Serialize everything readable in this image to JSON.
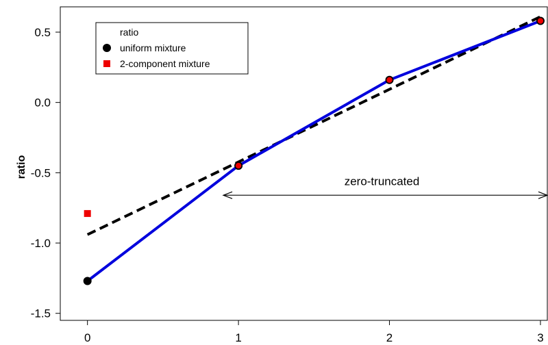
{
  "chart_data": {
    "type": "line",
    "xlabel": "",
    "ylabel": "ratio",
    "xlim": [
      -0.18,
      3.05
    ],
    "ylim": [
      -1.55,
      0.68
    ],
    "xticks": [
      0,
      1,
      2,
      3
    ],
    "yticks": [
      -1.5,
      -1.0,
      -0.5,
      0.0,
      0.5
    ],
    "xtick_labels": [
      "0",
      "1",
      "2",
      "3"
    ],
    "ytick_labels": [
      "-1.5",
      "-1.0",
      "-0.5",
      "0.0",
      "0.5"
    ],
    "grid": false,
    "legend": {
      "placement": "top-left",
      "title": "ratio",
      "entries": [
        "uniform mixture",
        "2-component mixture"
      ]
    },
    "series": [
      {
        "name": "uniform mixture",
        "kind": "points+line",
        "marker": "circle",
        "color": "#000000",
        "line_color": "#0000dd",
        "x": [
          0,
          1,
          2,
          3
        ],
        "y": [
          -1.27,
          -0.45,
          0.16,
          0.58
        ]
      },
      {
        "name": "2-component mixture",
        "kind": "points",
        "marker": "square",
        "color": "#ee0000",
        "x": [
          0,
          1,
          2,
          3
        ],
        "y": [
          -0.79,
          -0.45,
          0.16,
          0.58
        ]
      }
    ],
    "reference_line": {
      "style": "dashed",
      "color": "#000000",
      "x": [
        0,
        3
      ],
      "y": [
        -0.94,
        0.61
      ]
    },
    "annotation": {
      "text": "zero-truncated",
      "x_from": 0.9,
      "x_to": 3.05,
      "y": -0.66,
      "text_y": -0.56
    }
  }
}
